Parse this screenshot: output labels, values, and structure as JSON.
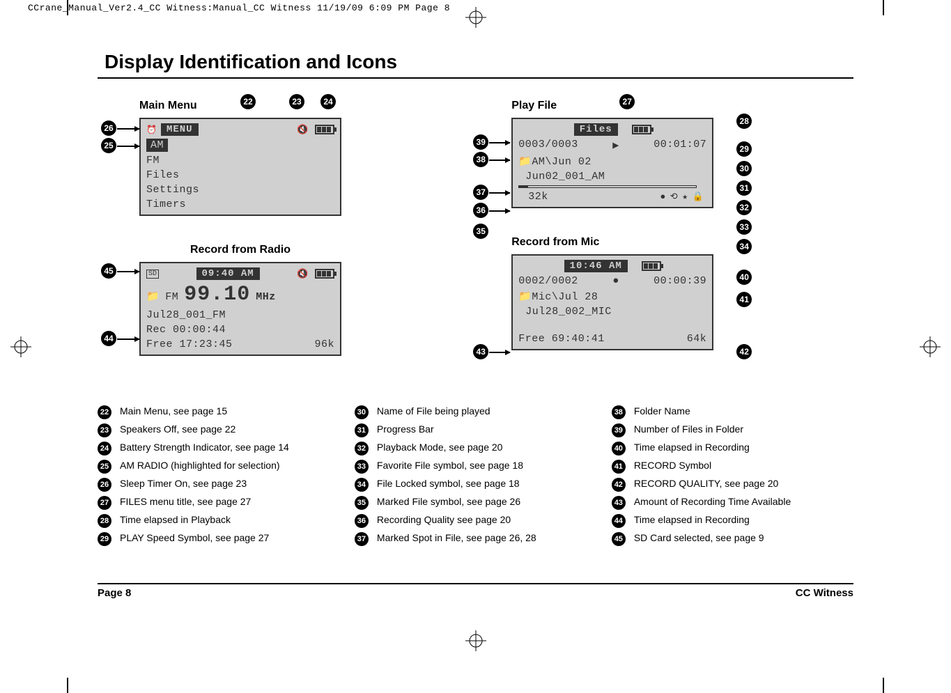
{
  "top_header": "CCrane_Manual_Ver2.4_CC Witness:Manual_CC Witness  11/19/09  6:09 PM  Page 8",
  "page_title": "Display Identification and Icons",
  "footer": {
    "page": "Page 8",
    "product": "CC Witness"
  },
  "screens": {
    "main_menu": {
      "title": "Main Menu",
      "header": "MENU",
      "items": [
        "AM",
        "FM",
        "Files",
        "Settings",
        "Timers"
      ],
      "highlighted": "AM"
    },
    "play_file": {
      "title": "Play File",
      "header": "Files",
      "counter": "0003/0003",
      "elapsed": "00:01:07",
      "folder": "AM\\Jun 02",
      "filename": "Jun02_001_AM",
      "quality": "32k"
    },
    "record_radio": {
      "title": "Record from Radio",
      "time": "09:40 AM",
      "band": "FM",
      "freq": "99.10",
      "unit": "MHz",
      "filename": "Jul28_001_FM",
      "rec": "Rec   00:00:44",
      "free": "Free  17:23:45",
      "quality": "96k"
    },
    "record_mic": {
      "title": "Record from Mic",
      "time": "10:46 AM",
      "counter": "0002/0002",
      "elapsed": "00:00:39",
      "folder": "Mic\\Jul 28",
      "filename": "Jul28_002_MIC",
      "free": "Free  69:40:41",
      "quality": "64k"
    }
  },
  "legend": {
    "col1": [
      {
        "n": "22",
        "t": "Main Menu, see page 15"
      },
      {
        "n": "23",
        "t": "Speakers Off, see page 22"
      },
      {
        "n": "24",
        "t": "Battery Strength Indicator, see page 14"
      },
      {
        "n": "25",
        "t": "AM RADIO (highlighted for selection)"
      },
      {
        "n": "26",
        "t": "Sleep Timer On, see page 23"
      },
      {
        "n": "27",
        "t": "FILES menu title, see page 27"
      },
      {
        "n": "28",
        "t": "Time elapsed in Playback"
      },
      {
        "n": "29",
        "t": "PLAY Speed Symbol, see page 27"
      }
    ],
    "col2": [
      {
        "n": "30",
        "t": "Name of File being played"
      },
      {
        "n": "31",
        "t": "Progress Bar"
      },
      {
        "n": "32",
        "t": "Playback Mode, see page 20"
      },
      {
        "n": "33",
        "t": "Favorite File symbol, see page 18"
      },
      {
        "n": "34",
        "t": "File Locked symbol, see page 18"
      },
      {
        "n": "35",
        "t": "Marked File symbol, see page 26"
      },
      {
        "n": "36",
        "t": "Recording Quality see page 20"
      },
      {
        "n": "37",
        "t": "Marked Spot in File, see page 26, 28"
      }
    ],
    "col3": [
      {
        "n": "38",
        "t": "Folder Name"
      },
      {
        "n": "39",
        "t": "Number of Files in Folder"
      },
      {
        "n": "40",
        "t": "Time elapsed in Recording"
      },
      {
        "n": "41",
        "t": "RECORD Symbol"
      },
      {
        "n": "42",
        "t": "RECORD QUALITY, see page 20"
      },
      {
        "n": "43",
        "t": "Amount of Recording Time Available"
      },
      {
        "n": "44",
        "t": "Time elapsed in Recording"
      },
      {
        "n": "45",
        "t": "SD Card selected, see page 9"
      }
    ]
  },
  "callouts": {
    "main_menu": [
      "22",
      "23",
      "24",
      "25",
      "26"
    ],
    "play_file": [
      "27",
      "28",
      "29",
      "30",
      "31",
      "32",
      "33",
      "34",
      "35",
      "36",
      "37",
      "38",
      "39"
    ],
    "record_radio": [
      "44",
      "45"
    ],
    "record_mic": [
      "40",
      "41",
      "42",
      "43"
    ]
  },
  "colors": {
    "lcd_bg": "#d0d0d0",
    "lcd_text": "#333333",
    "black": "#000000",
    "white": "#ffffff"
  }
}
